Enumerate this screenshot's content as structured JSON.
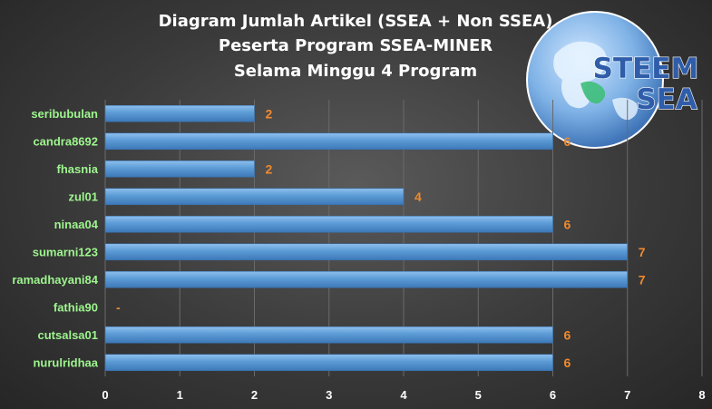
{
  "chart_data": {
    "type": "bar",
    "orientation": "horizontal",
    "title": [
      "Diagram  Jumlah  Artikel  (SSEA + Non SSEA)",
      "Peserta  Program  SSEA-MINER",
      "Selama  Minggu  4 Program"
    ],
    "categories": [
      "seribubulan",
      "candra8692",
      "fhasnia",
      "zul01",
      "ninaa04",
      "sumarni123",
      "ramadhayani84",
      "fathia90",
      "cutsalsa01",
      "nurulridhaa"
    ],
    "values": [
      2,
      6,
      2,
      4,
      6,
      7,
      7,
      0,
      6,
      6
    ],
    "data_labels": [
      "2",
      "6",
      "2",
      "4",
      "6",
      "7",
      "7",
      "-",
      "6",
      "6"
    ],
    "xlim": [
      0,
      8
    ],
    "xticks": [
      "0",
      "1",
      "2",
      "3",
      "4",
      "5",
      "6",
      "7",
      "8"
    ],
    "grid": true,
    "bar_color": "#5b9bd5",
    "label_color": "#f08a2e",
    "category_color": "#9ef58e"
  },
  "logo": {
    "name": "steem-sea-globe-logo",
    "text_top": "STEEM",
    "text_bottom": "SEA"
  }
}
